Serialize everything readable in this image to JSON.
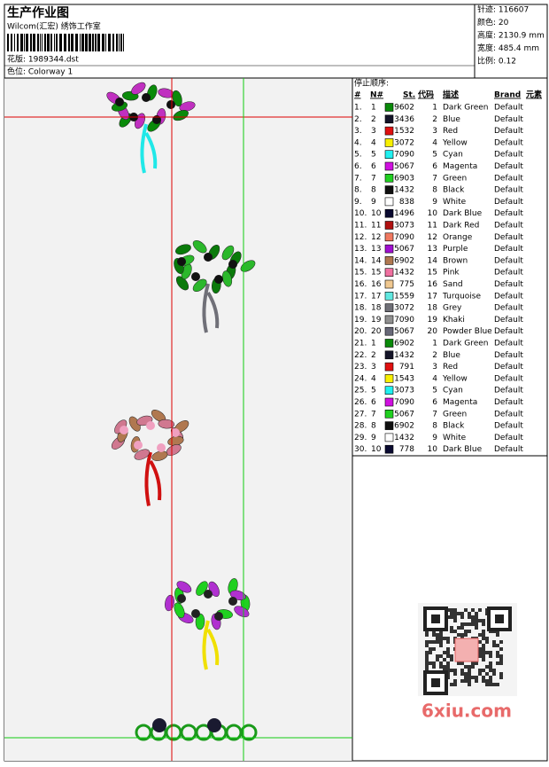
{
  "header": {
    "title": "生产作业图",
    "studio": "Wilcom(汇宏) 绣饰工作室",
    "design": "花版: 1989344.dst",
    "colorway": "色位: Colorway 1"
  },
  "info": [
    "针迹: 116607",
    "颜色: 20",
    "高度: 2130.9 mm",
    "宽度: 485.4 mm",
    "比例: 0.12"
  ],
  "stop_sequence": {
    "title": "停止顺序:",
    "columns": [
      "#",
      "N#",
      "St.",
      "代码",
      "描述",
      "Brand",
      "元素"
    ],
    "rows": [
      {
        "no": "1.",
        "n": "1",
        "color": "#0a8a0a",
        "st": "9602",
        "code": "1",
        "desc": "Dark Green",
        "brand": "Default"
      },
      {
        "no": "2.",
        "n": "2",
        "color": "#141428",
        "st": "3436",
        "code": "2",
        "desc": "Blue",
        "brand": "Default"
      },
      {
        "no": "3.",
        "n": "3",
        "color": "#e01010",
        "st": "1532",
        "code": "3",
        "desc": "Red",
        "brand": "Default"
      },
      {
        "no": "4.",
        "n": "4",
        "color": "#f8f000",
        "st": "3072",
        "code": "4",
        "desc": "Yellow",
        "brand": "Default"
      },
      {
        "no": "5.",
        "n": "5",
        "color": "#20f0f0",
        "st": "7090",
        "code": "5",
        "desc": "Cyan",
        "brand": "Default"
      },
      {
        "no": "6.",
        "n": "6",
        "color": "#d010e0",
        "st": "5067",
        "code": "6",
        "desc": "Magenta",
        "brand": "Default"
      },
      {
        "no": "7.",
        "n": "7",
        "color": "#20d020",
        "st": "6903",
        "code": "7",
        "desc": "Green",
        "brand": "Default"
      },
      {
        "no": "8.",
        "n": "8",
        "color": "#101010",
        "st": "1432",
        "code": "8",
        "desc": "Black",
        "brand": "Default"
      },
      {
        "no": "9.",
        "n": "9",
        "color": "#ffffff",
        "st": "838",
        "code": "9",
        "desc": "White",
        "brand": "Default"
      },
      {
        "no": "10.",
        "n": "10",
        "color": "#0a0a30",
        "st": "1496",
        "code": "10",
        "desc": "Dark Blue",
        "brand": "Default"
      },
      {
        "no": "11.",
        "n": "11",
        "color": "#b01010",
        "st": "3073",
        "code": "11",
        "desc": "Dark Red",
        "brand": "Default"
      },
      {
        "no": "12.",
        "n": "12",
        "color": "#f07860",
        "st": "7090",
        "code": "12",
        "desc": "Orange",
        "brand": "Default"
      },
      {
        "no": "13.",
        "n": "13",
        "color": "#a010d0",
        "st": "5067",
        "code": "13",
        "desc": "Purple",
        "brand": "Default"
      },
      {
        "no": "14.",
        "n": "14",
        "color": "#b07850",
        "st": "6902",
        "code": "14",
        "desc": "Brown",
        "brand": "Default"
      },
      {
        "no": "15.",
        "n": "15",
        "color": "#f070a0",
        "st": "1432",
        "code": "15",
        "desc": "Pink",
        "brand": "Default"
      },
      {
        "no": "16.",
        "n": "16",
        "color": "#f0c890",
        "st": "775",
        "code": "16",
        "desc": "Sand",
        "brand": "Default"
      },
      {
        "no": "17.",
        "n": "17",
        "color": "#60e8e0",
        "st": "1559",
        "code": "17",
        "desc": "Turquoise",
        "brand": "Default"
      },
      {
        "no": "18.",
        "n": "18",
        "color": "#707078",
        "st": "3072",
        "code": "18",
        "desc": "Grey",
        "brand": "Default"
      },
      {
        "no": "19.",
        "n": "19",
        "color": "#909090",
        "st": "7090",
        "code": "19",
        "desc": "Khaki",
        "brand": "Default"
      },
      {
        "no": "20.",
        "n": "20",
        "color": "#686878",
        "st": "5067",
        "code": "20",
        "desc": "Powder Blue",
        "brand": "Default"
      },
      {
        "no": "21.",
        "n": "1",
        "color": "#0a8a0a",
        "st": "6902",
        "code": "1",
        "desc": "Dark Green",
        "brand": "Default"
      },
      {
        "no": "22.",
        "n": "2",
        "color": "#141428",
        "st": "1432",
        "code": "2",
        "desc": "Blue",
        "brand": "Default"
      },
      {
        "no": "23.",
        "n": "3",
        "color": "#e01010",
        "st": "791",
        "code": "3",
        "desc": "Red",
        "brand": "Default"
      },
      {
        "no": "24.",
        "n": "4",
        "color": "#f8f000",
        "st": "1543",
        "code": "4",
        "desc": "Yellow",
        "brand": "Default"
      },
      {
        "no": "25.",
        "n": "5",
        "color": "#20f0f0",
        "st": "3073",
        "code": "5",
        "desc": "Cyan",
        "brand": "Default"
      },
      {
        "no": "26.",
        "n": "6",
        "color": "#d010e0",
        "st": "7090",
        "code": "6",
        "desc": "Magenta",
        "brand": "Default"
      },
      {
        "no": "27.",
        "n": "7",
        "color": "#20d020",
        "st": "5067",
        "code": "7",
        "desc": "Green",
        "brand": "Default"
      },
      {
        "no": "28.",
        "n": "8",
        "color": "#101010",
        "st": "6902",
        "code": "8",
        "desc": "Black",
        "brand": "Default"
      },
      {
        "no": "29.",
        "n": "9",
        "color": "#ffffff",
        "st": "1432",
        "code": "9",
        "desc": "White",
        "brand": "Default"
      },
      {
        "no": "30.",
        "n": "10",
        "color": "#0a0a30",
        "st": "778",
        "code": "10",
        "desc": "Dark Blue",
        "brand": "Default"
      }
    ]
  },
  "watermark": "6xiu.com"
}
